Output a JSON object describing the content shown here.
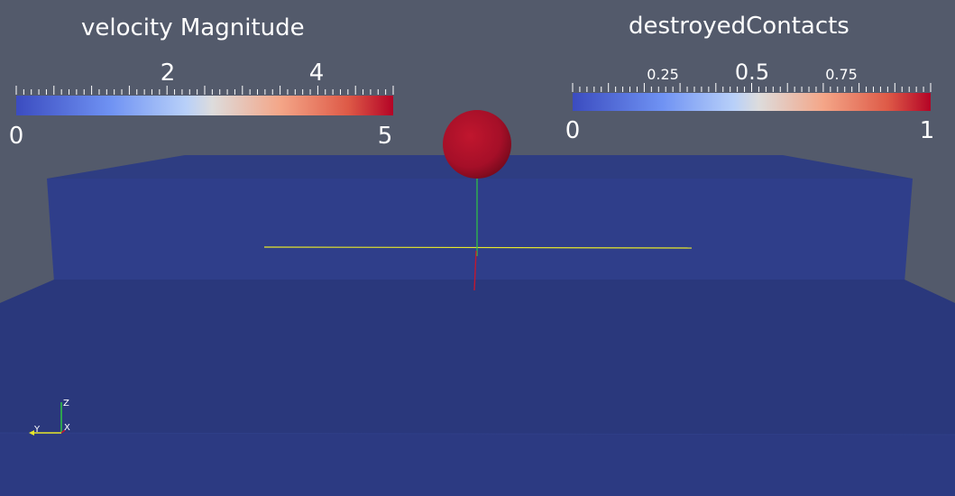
{
  "scene": {
    "background": "#535a6b",
    "slab_color": "#2b3a80",
    "sphere_color": "#a8102a"
  },
  "color_bars": [
    {
      "title": "velocity Magnitude",
      "range": [
        0,
        5
      ],
      "min_label": "0",
      "max_label": "5",
      "labels": [
        "2",
        "4"
      ],
      "colormap": [
        "#3b4cc0",
        "#8db0fe",
        "#dddddd",
        "#f49a7b",
        "#b40426"
      ]
    },
    {
      "title": "destroyedContacts",
      "range": [
        0,
        1
      ],
      "min_label": "0",
      "max_label": "1",
      "labels": [
        "0.25",
        "0.5",
        "0.75"
      ],
      "colormap": [
        "#3b4cc0",
        "#8db0fe",
        "#dddddd",
        "#f49a7b",
        "#b40426"
      ]
    }
  ],
  "orientation_axes": {
    "z_label": "Z",
    "y_label": "Y",
    "x_label": "X"
  }
}
